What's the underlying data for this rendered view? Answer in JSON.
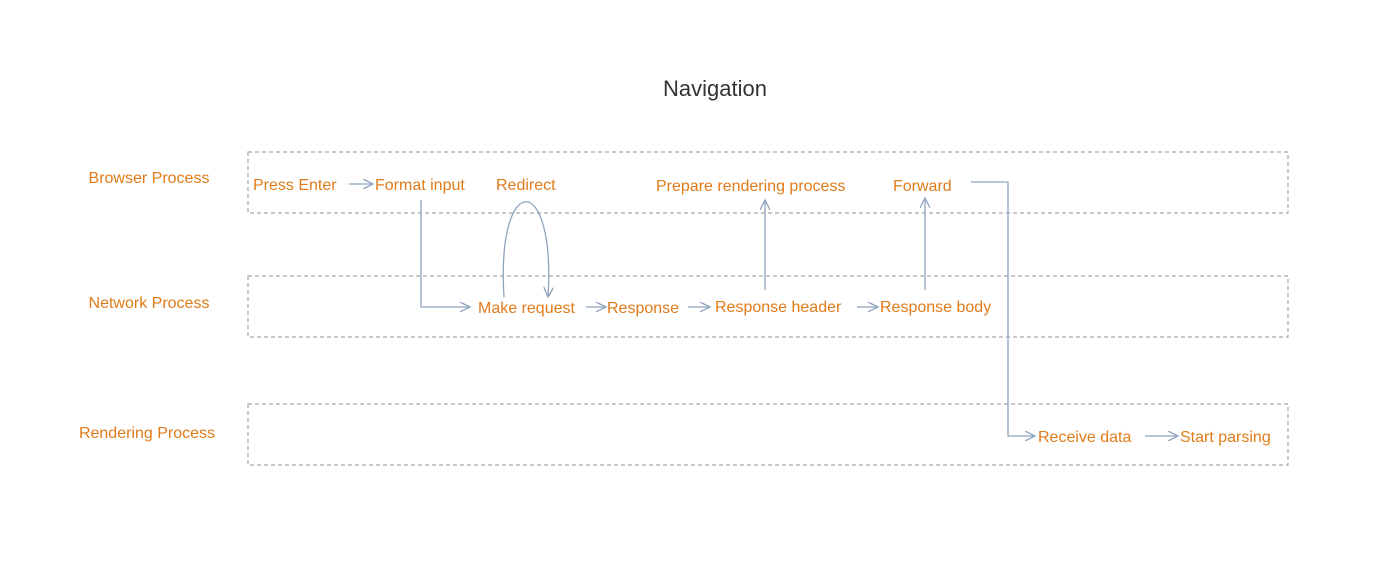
{
  "title": "Navigation",
  "colors": {
    "label": "#e07b1a",
    "arrow": "#8fa3bf",
    "lane_border": "#a8a8a8",
    "title": "#333333"
  },
  "lanes": [
    {
      "id": "browser",
      "label": "Browser Process"
    },
    {
      "id": "network",
      "label": "Network Process"
    },
    {
      "id": "rendering",
      "label": "Rendering Process"
    }
  ],
  "nodes": [
    {
      "id": "press_enter",
      "lane": "browser",
      "label": "Press Enter"
    },
    {
      "id": "format_input",
      "lane": "browser",
      "label": "Format input"
    },
    {
      "id": "redirect",
      "lane": "browser",
      "label": "Redirect"
    },
    {
      "id": "prepare_rendering",
      "lane": "browser",
      "label": "Prepare rendering process"
    },
    {
      "id": "forward",
      "lane": "browser",
      "label": "Forward"
    },
    {
      "id": "make_request",
      "lane": "network",
      "label": "Make request"
    },
    {
      "id": "response",
      "lane": "network",
      "label": "Response"
    },
    {
      "id": "response_header",
      "lane": "network",
      "label": "Response header"
    },
    {
      "id": "response_body",
      "lane": "network",
      "label": "Response body"
    },
    {
      "id": "receive_data",
      "lane": "rendering",
      "label": "Receive data"
    },
    {
      "id": "start_parsing",
      "lane": "rendering",
      "label": "Start parsing"
    }
  ],
  "edges": [
    {
      "from": "press_enter",
      "to": "format_input"
    },
    {
      "from": "format_input",
      "to": "make_request"
    },
    {
      "from": "make_request",
      "to": "redirect"
    },
    {
      "from": "redirect",
      "to": "make_request"
    },
    {
      "from": "make_request",
      "to": "response"
    },
    {
      "from": "response",
      "to": "response_header"
    },
    {
      "from": "response_header",
      "to": "response_body"
    },
    {
      "from": "response_header",
      "to": "prepare_rendering"
    },
    {
      "from": "response_body",
      "to": "forward"
    },
    {
      "from": "forward",
      "to": "receive_data"
    },
    {
      "from": "receive_data",
      "to": "start_parsing"
    }
  ]
}
